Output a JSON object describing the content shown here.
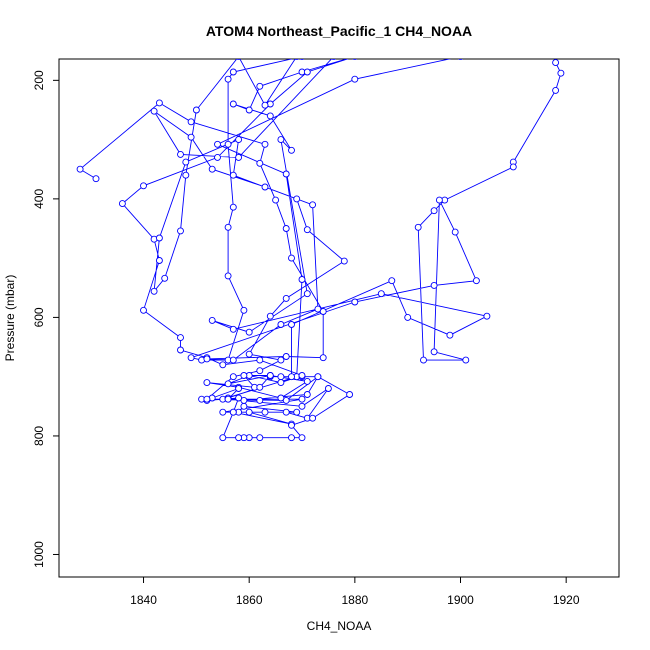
{
  "chart_data": {
    "type": "line",
    "title": "ATOM4 Northeast_Pacific_1 CH4_NOAA",
    "xlabel": "CH4_NOAA",
    "ylabel": "Pressure (mbar)",
    "xlim": [
      1824,
      1930
    ],
    "ylim": [
      1038,
      164
    ],
    "y_reversed": true,
    "x_ticks": [
      1840,
      1860,
      1880,
      1900,
      1920
    ],
    "y_ticks": [
      200,
      400,
      600,
      800,
      1000
    ],
    "grid": false,
    "legend": "none",
    "series": [
      {
        "color": "#0000ff",
        "marker": "open-circle",
        "points": [
          [
            1918,
            170
          ],
          [
            1919,
            188
          ],
          [
            1918,
            217
          ],
          [
            1910,
            338
          ],
          [
            1910,
            346
          ],
          [
            1897,
            402
          ],
          [
            1895,
            420
          ],
          [
            1892,
            448
          ],
          [
            1893,
            672
          ],
          [
            1901,
            672
          ],
          [
            1895,
            658
          ],
          [
            1896,
            402
          ],
          [
            1899,
            456
          ],
          [
            1903,
            538
          ],
          [
            1895,
            546
          ],
          [
            1880,
            574
          ],
          [
            1849,
            668
          ],
          [
            1851,
            672
          ],
          [
            1856,
            672
          ],
          [
            1859,
            588
          ],
          [
            1856,
            530
          ],
          [
            1856,
            448
          ],
          [
            1857,
            414
          ],
          [
            1856,
            308
          ],
          [
            1856,
            198
          ],
          [
            1857,
            186
          ],
          [
            1870,
            160
          ],
          [
            1900,
            160
          ],
          [
            1880,
            198
          ],
          [
            1854,
            308
          ],
          [
            1867,
            358
          ],
          [
            1870,
            536
          ],
          [
            1869,
            700
          ],
          [
            1855,
            738
          ],
          [
            1870,
            738
          ],
          [
            1855,
            760
          ],
          [
            1858,
            760
          ],
          [
            1859,
            750
          ],
          [
            1869,
            760
          ],
          [
            1857,
            760
          ],
          [
            1868,
            780
          ],
          [
            1860,
            760
          ],
          [
            1863,
            760
          ],
          [
            1867,
            760
          ],
          [
            1871,
            770
          ],
          [
            1875,
            720
          ],
          [
            1870,
            750
          ],
          [
            1856,
            738
          ],
          [
            1862,
            740
          ],
          [
            1851,
            738
          ],
          [
            1867,
            740
          ],
          [
            1873,
            700
          ],
          [
            1866,
            700
          ],
          [
            1864,
            700
          ],
          [
            1870,
            700
          ],
          [
            1868,
            700
          ],
          [
            1868,
            612
          ],
          [
            1887,
            538
          ],
          [
            1890,
            600
          ],
          [
            1898,
            630
          ],
          [
            1905,
            598
          ],
          [
            1885,
            560
          ],
          [
            1857,
            620
          ],
          [
            1853,
            605
          ],
          [
            1860,
            625
          ],
          [
            1871,
            560
          ],
          [
            1866,
            300
          ],
          [
            1868,
            318
          ],
          [
            1864,
            260
          ],
          [
            1857,
            240
          ],
          [
            1860,
            250
          ],
          [
            1862,
            210
          ],
          [
            1870,
            186
          ],
          [
            1880,
            160
          ],
          [
            1871,
            186
          ],
          [
            1864,
            240
          ],
          [
            1854,
            330
          ],
          [
            1840,
            378
          ],
          [
            1836,
            408
          ],
          [
            1842,
            468
          ],
          [
            1843,
            504
          ],
          [
            1840,
            588
          ],
          [
            1847,
            634
          ],
          [
            1847,
            655
          ],
          [
            1852,
            668
          ],
          [
            1855,
            680
          ],
          [
            1862,
            672
          ],
          [
            1870,
            698
          ],
          [
            1866,
            710
          ],
          [
            1860,
            698
          ],
          [
            1856,
            712
          ],
          [
            1864,
            698
          ],
          [
            1859,
            698
          ],
          [
            1861,
            718
          ],
          [
            1852,
            710
          ],
          [
            1858,
            718
          ],
          [
            1866,
            736
          ],
          [
            1871,
            708
          ],
          [
            1864,
            698
          ],
          [
            1862,
            718
          ],
          [
            1856,
            736
          ],
          [
            1859,
            740
          ],
          [
            1871,
            730
          ],
          [
            1873,
            700
          ],
          [
            1879,
            730
          ],
          [
            1872,
            770
          ],
          [
            1868,
            782
          ],
          [
            1870,
            803
          ],
          [
            1868,
            803
          ],
          [
            1862,
            803
          ],
          [
            1860,
            803
          ],
          [
            1859,
            803
          ],
          [
            1858,
            803
          ],
          [
            1855,
            803
          ],
          [
            1857,
            760
          ],
          [
            1858,
            736
          ],
          [
            1852,
            740
          ],
          [
            1853,
            736
          ],
          [
            1858,
            720
          ],
          [
            1856,
            738
          ],
          [
            1852,
            738
          ],
          [
            1857,
            700
          ],
          [
            1862,
            690
          ],
          [
            1866,
            672
          ],
          [
            1860,
            662
          ],
          [
            1864,
            598
          ],
          [
            1867,
            568
          ],
          [
            1878,
            505
          ],
          [
            1871,
            452
          ],
          [
            1869,
            400
          ],
          [
            1857,
            360
          ],
          [
            1858,
            300
          ],
          [
            1848,
            338
          ],
          [
            1843,
            466
          ],
          [
            1842,
            556
          ],
          [
            1844,
            534
          ],
          [
            1847,
            454
          ],
          [
            1848,
            360
          ],
          [
            1850,
            250
          ],
          [
            1858,
            160
          ],
          [
            1863,
            242
          ],
          [
            1869,
            160
          ],
          [
            1876,
            160
          ],
          [
            1858,
            330
          ],
          [
            1847,
            325
          ],
          [
            1842,
            252
          ],
          [
            1849,
            296
          ],
          [
            1853,
            350
          ],
          [
            1863,
            380
          ],
          [
            1872,
            410
          ],
          [
            1873,
            586
          ],
          [
            1866,
            612
          ],
          [
            1857,
            672
          ],
          [
            1852,
            670
          ],
          [
            1867,
            666
          ],
          [
            1874,
            668
          ],
          [
            1874,
            590
          ],
          [
            1868,
            500
          ],
          [
            1867,
            450
          ],
          [
            1865,
            402
          ],
          [
            1862,
            340
          ],
          [
            1863,
            308
          ],
          [
            1849,
            270
          ],
          [
            1843,
            238
          ],
          [
            1828,
            350
          ],
          [
            1831,
            366
          ]
        ]
      }
    ]
  }
}
